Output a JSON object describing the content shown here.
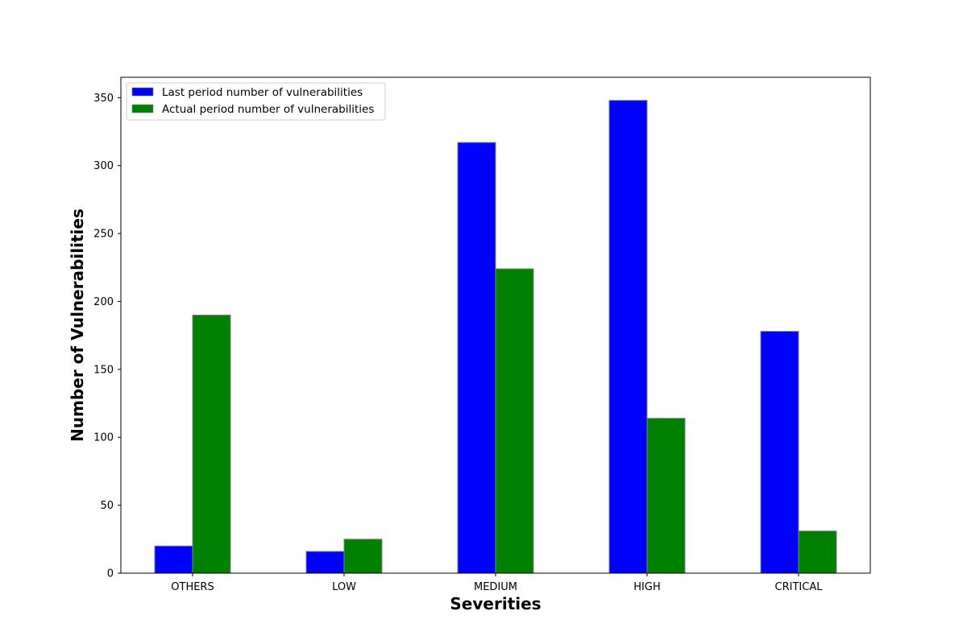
{
  "chart_data": {
    "type": "bar",
    "title": "",
    "xlabel": "Severities",
    "ylabel": "Number of Vulnerabilities",
    "categories": [
      "OTHERS",
      "LOW",
      "MEDIUM",
      "HIGH",
      "CRITICAL"
    ],
    "series": [
      {
        "name": "Last period number of vulnerabilities",
        "color": "#0000ff",
        "values": [
          20,
          16,
          317,
          348,
          178
        ]
      },
      {
        "name": "Actual period number of vulnerabilities",
        "color": "#008000",
        "values": [
          190,
          25,
          224,
          114,
          31
        ]
      }
    ],
    "ylim": [
      0,
      365
    ],
    "yticks": [
      0,
      50,
      100,
      150,
      200,
      250,
      300,
      350
    ],
    "grid": false,
    "legend_position": "top-left"
  }
}
